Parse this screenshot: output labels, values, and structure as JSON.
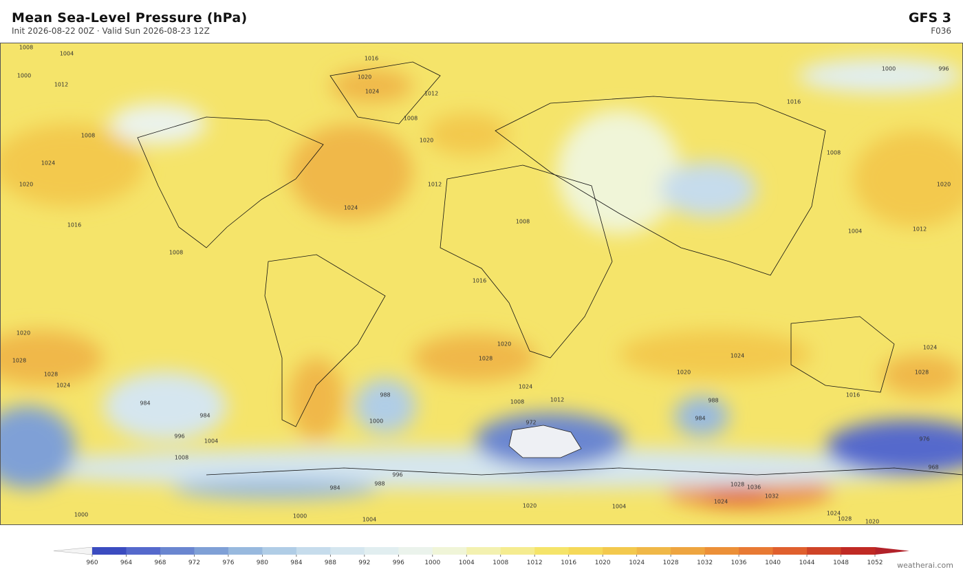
{
  "header": {
    "title": "Mean Sea-Level Pressure  (hPa)",
    "subtitle": "Init 2026-08-22 00Z  ·  Valid Sun 2026-08-23 12Z",
    "model": "GFS  3",
    "forecast_hour": "F036"
  },
  "credit": "weatherai.com",
  "contour_labels": [
    1008,
    1004,
    1000,
    1012,
    1008,
    1024,
    1020,
    1016,
    1008,
    1016,
    1020,
    1024,
    1012,
    1008,
    1020,
    1024,
    1012,
    1008,
    1016,
    1016,
    1000,
    996,
    1008,
    1020,
    1004,
    1012,
    1020,
    1028,
    1028,
    1024,
    1028,
    1020,
    1024,
    1012,
    1008,
    972,
    988,
    1000,
    984,
    984,
    996,
    1004,
    1008,
    1024,
    1020,
    1028,
    1016,
    976,
    968,
    1028,
    1032,
    1036,
    1024,
    1024,
    1004,
    1020,
    984,
    988,
    996,
    984,
    988,
    1004,
    1000,
    1000,
    1024,
    1028,
    1020
  ],
  "colorbar": {
    "ticks": [
      960,
      964,
      968,
      972,
      976,
      980,
      984,
      988,
      992,
      996,
      1000,
      1004,
      1008,
      1012,
      1016,
      1020,
      1024,
      1028,
      1032,
      1036,
      1040,
      1044,
      1048,
      1052
    ],
    "colors": [
      "#3b4cc0",
      "#5569cc",
      "#6a86d0",
      "#7fa0d6",
      "#98b9de",
      "#b0cde6",
      "#c6dcec",
      "#d5e6ef",
      "#e1eef0",
      "#ebf3ec",
      "#f0f5d8",
      "#f3f1b0",
      "#f5ec90",
      "#f5e46a",
      "#f5d95a",
      "#f3c94e",
      "#f0b848",
      "#eea540",
      "#ec9038",
      "#e87a34",
      "#e0602e",
      "#cf4428",
      "#c02a24"
    ],
    "under_color": "#f4f4f4",
    "over_color": "#b2222a"
  }
}
